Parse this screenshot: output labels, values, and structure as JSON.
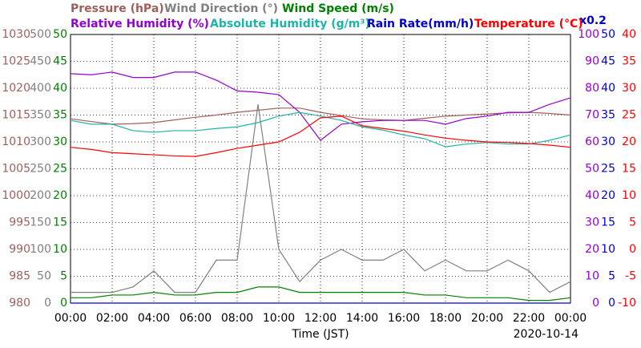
{
  "chart_data": {
    "type": "line",
    "xlabel": "Time (JST)",
    "date_label": "2020-10-14",
    "xlim": [
      0,
      24
    ],
    "xticks": [
      {
        "value": 0,
        "label": "00:00"
      },
      {
        "value": 2,
        "label": "02:00"
      },
      {
        "value": 4,
        "label": "04:00"
      },
      {
        "value": 6,
        "label": "06:00"
      },
      {
        "value": 8,
        "label": "08:00"
      },
      {
        "value": 10,
        "label": "10:00"
      },
      {
        "value": 12,
        "label": "12:00"
      },
      {
        "value": 14,
        "label": "14:00"
      },
      {
        "value": 16,
        "label": "16:00"
      },
      {
        "value": 18,
        "label": "18:00"
      },
      {
        "value": 20,
        "label": "20:00"
      },
      {
        "value": 22,
        "label": "22:00"
      },
      {
        "value": 24,
        "label": "00:00"
      }
    ],
    "grid": true,
    "x": [
      0,
      1,
      2,
      3,
      4,
      5,
      6,
      7,
      8,
      9,
      10,
      11,
      12,
      13,
      14,
      15,
      16,
      17,
      18,
      19,
      20,
      21,
      22,
      23,
      24
    ],
    "series": [
      {
        "name": "Pressure (hPa)",
        "color": "#a0605a",
        "ylim": [
          980,
          1030
        ],
        "yticks": [
          980,
          985,
          990,
          995,
          1000,
          1005,
          1010,
          1015,
          1020,
          1025,
          1030
        ],
        "values": [
          1014.3,
          1013.8,
          1013.3,
          1013.4,
          1013.6,
          1014.1,
          1014.6,
          1015,
          1015.5,
          1015.9,
          1016.3,
          1016.3,
          1015.5,
          1014.9,
          1014.3,
          1014.1,
          1014,
          1014.4,
          1014.8,
          1015,
          1015.2,
          1015.4,
          1015.5,
          1015.3,
          1015
        ]
      },
      {
        "name": "Wind Direction (°)",
        "color": "#808080",
        "ylim": [
          0,
          500
        ],
        "yticks": [
          0,
          50,
          100,
          150,
          200,
          250,
          300,
          350,
          400,
          450,
          500
        ],
        "values": [
          20,
          20,
          20,
          30,
          60,
          20,
          20,
          80,
          80,
          370,
          100,
          40,
          80,
          100,
          80,
          80,
          100,
          60,
          80,
          60,
          60,
          80,
          60,
          20,
          40
        ]
      },
      {
        "name": "Wind Speed (m/s)",
        "color": "#008000",
        "ylim": [
          0,
          50
        ],
        "yticks": [
          0,
          5,
          10,
          15,
          20,
          25,
          30,
          35,
          40,
          45,
          50
        ],
        "values": [
          1,
          1,
          1.5,
          1.5,
          2,
          1.5,
          1.5,
          2,
          2,
          3,
          3,
          2,
          2,
          2,
          2,
          2,
          2,
          1.5,
          1.5,
          1,
          1,
          1,
          0.5,
          0.5,
          1
        ]
      },
      {
        "name": "Relative Humidity (%)",
        "color": "#9400d3",
        "ylim": [
          0,
          100
        ],
        "yticks": [
          0,
          10,
          20,
          30,
          40,
          50,
          60,
          70,
          80,
          90,
          100
        ],
        "values": [
          85.4,
          85,
          86,
          84,
          84,
          86,
          86,
          83,
          79,
          78.5,
          77.6,
          71,
          60.6,
          66.6,
          67.5,
          68,
          68,
          68,
          66.6,
          68.7,
          69.6,
          71,
          71,
          74,
          76.4
        ]
      },
      {
        "name": "Absolute Humidity (g/m³)",
        "color": "#20b2aa",
        "ylim": [
          0,
          50
        ],
        "values": [
          34,
          33.3,
          33.3,
          32.1,
          31.8,
          32.1,
          32.1,
          32.5,
          32.8,
          33.6,
          34.8,
          35.5,
          34.8,
          34,
          32.8,
          32.2,
          31.3,
          30.6,
          29.1,
          29.6,
          29.9,
          29.6,
          29.6,
          30.3,
          31.3
        ]
      },
      {
        "name": "Rain Rate(mm/h)",
        "color": "#0000cd",
        "scale_label": "x0.2",
        "ylim": [
          0,
          50
        ],
        "yticks": [
          0,
          5,
          10,
          15,
          20,
          25,
          30,
          35,
          40,
          45,
          50
        ],
        "values": [
          0,
          0,
          0,
          0,
          0,
          0,
          0,
          0,
          0,
          0,
          0,
          0,
          0,
          0,
          0,
          0,
          0,
          0,
          0,
          0,
          0,
          0,
          0,
          0,
          0
        ]
      },
      {
        "name": "Temperature (°C)",
        "color": "#ff0000",
        "ylim": [
          -10,
          40
        ],
        "yticks": [
          -10,
          -5,
          0,
          5,
          10,
          15,
          20,
          25,
          30,
          35,
          40
        ],
        "values": [
          19,
          18.6,
          18,
          17.8,
          17.6,
          17.4,
          17.3,
          18,
          18.8,
          19.4,
          20,
          21.8,
          24.5,
          24.8,
          23,
          22.5,
          22,
          21.3,
          20.7,
          20.3,
          20,
          19.9,
          19.7,
          19.4,
          19
        ]
      }
    ]
  }
}
